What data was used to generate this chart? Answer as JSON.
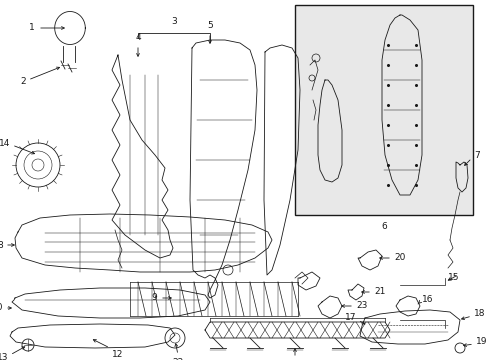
{
  "bg_color": "#ffffff",
  "line_color": "#1a1a1a",
  "box_bg": "#e8e8e8",
  "font_size": 6.5,
  "figsize": [
    4.89,
    3.6
  ],
  "dpi": 100
}
